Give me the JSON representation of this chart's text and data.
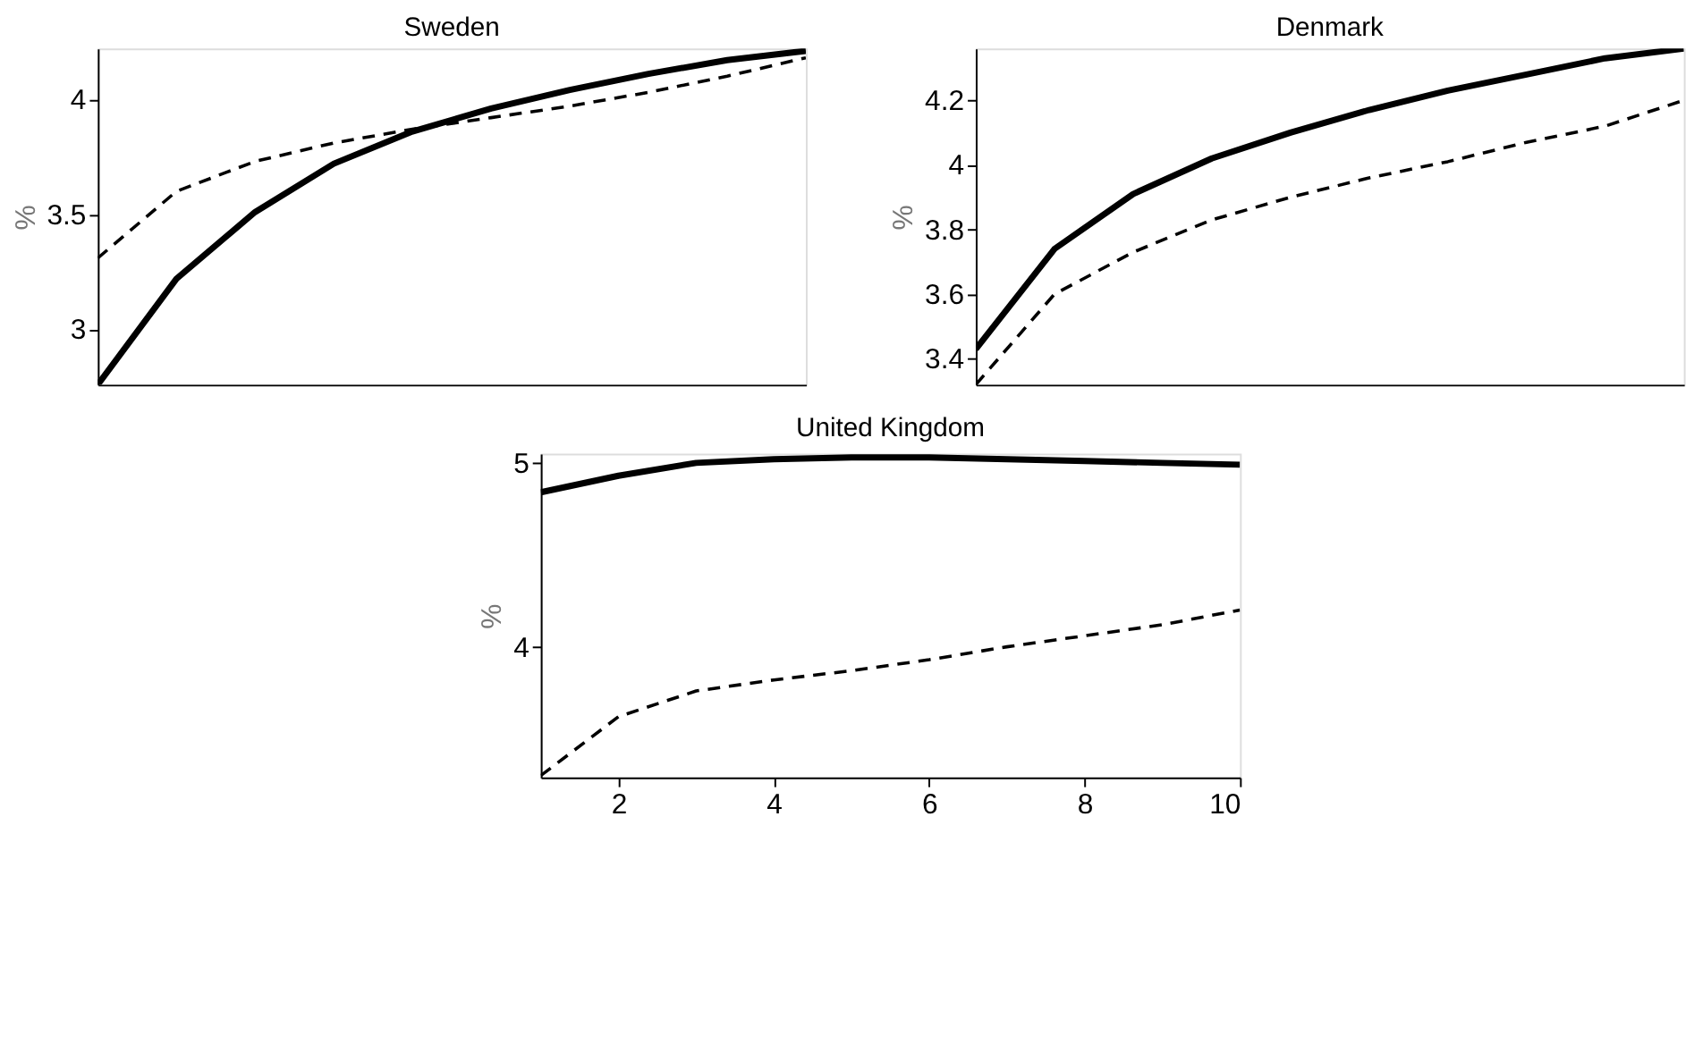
{
  "chart_data": [
    {
      "type": "line",
      "title": "Sweden",
      "ylabel": "%",
      "categories": [
        null,
        null,
        null,
        null,
        null,
        null,
        null,
        null,
        null,
        null
      ],
      "ylim": [
        2.76,
        4.22
      ],
      "yticks": [
        3,
        3.5,
        4
      ],
      "tick_labels": "y",
      "series": [
        {
          "color": "#000000",
          "line_style": "solid",
          "values": [
            2.76,
            3.22,
            3.51,
            3.72,
            3.86,
            3.96,
            4.04,
            4.11,
            4.17,
            4.21
          ]
        },
        {
          "color": "#000000",
          "line_style": "dashed",
          "values": [
            3.31,
            3.6,
            3.73,
            3.81,
            3.87,
            3.92,
            3.97,
            4.03,
            4.1,
            4.18
          ]
        }
      ]
    },
    {
      "type": "line",
      "title": "Denmark",
      "ylabel": "%",
      "categories": [
        null,
        null,
        null,
        null,
        null,
        null,
        null,
        null,
        null,
        null
      ],
      "ylim": [
        3.32,
        4.36
      ],
      "yticks": [
        3.4,
        3.6,
        3.8,
        4,
        4.2
      ],
      "tick_labels": "y",
      "series": [
        {
          "color": "#000000",
          "line_style": "solid",
          "values": [
            3.43,
            3.74,
            3.91,
            4.02,
            4.1,
            4.17,
            4.23,
            4.28,
            4.33,
            4.36
          ]
        },
        {
          "color": "#000000",
          "line_style": "dashed",
          "values": [
            3.32,
            3.6,
            3.73,
            3.83,
            3.9,
            3.96,
            4.01,
            4.07,
            4.12,
            4.2
          ]
        }
      ]
    },
    {
      "type": "line",
      "title": "United Kingdom",
      "ylabel": "%",
      "x": [
        1,
        2,
        3,
        4,
        5,
        6,
        7,
        8,
        9,
        10
      ],
      "xlim": [
        1,
        10
      ],
      "xticks": [
        2,
        4,
        6,
        8,
        10
      ],
      "ylim": [
        3.29,
        5.05
      ],
      "yticks": [
        4,
        5
      ],
      "series": [
        {
          "color": "#000000",
          "line_style": "solid",
          "values": [
            4.84,
            4.93,
            5.0,
            5.02,
            5.03,
            5.03,
            5.02,
            5.01,
            5.0,
            4.99
          ]
        },
        {
          "color": "#000000",
          "line_style": "dashed",
          "values": [
            3.3,
            3.62,
            3.76,
            3.82,
            3.87,
            3.93,
            4.0,
            4.06,
            4.12,
            4.2
          ]
        }
      ]
    }
  ]
}
